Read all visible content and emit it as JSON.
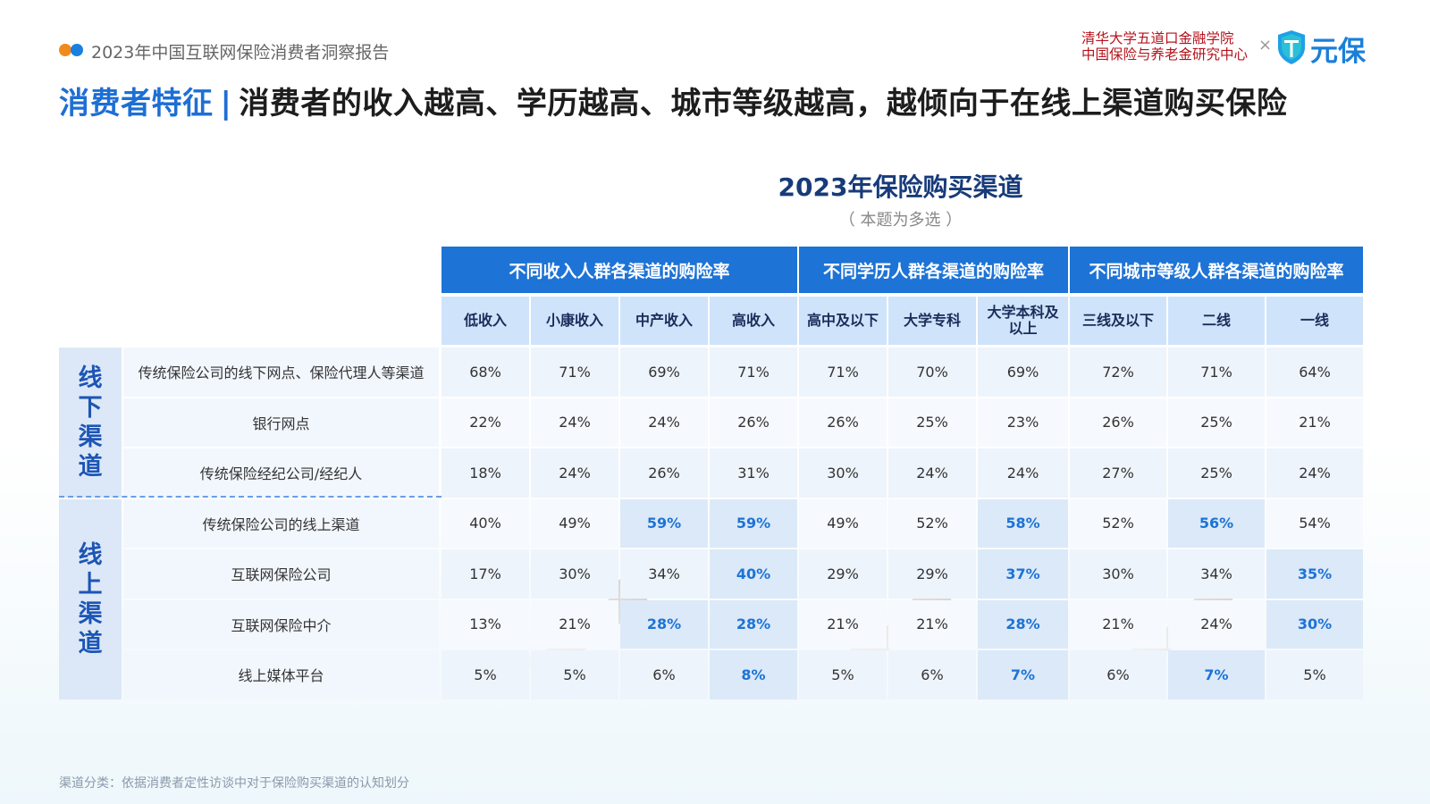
{
  "header": {
    "report_title": "2023年中国互联网保险消费者洞察报告",
    "institution_line1": "清华大学五道口金融学院",
    "institution_line2": "中国保险与养老金研究中心",
    "times": "×",
    "brand": "元保"
  },
  "headline": {
    "tag": "消费者特征",
    "separator": "|",
    "text": "消费者的收入越高、学历越高、城市等级越高，越倾向于在线上渠道购买保险"
  },
  "table": {
    "title": "2023年保险购买渠道",
    "subtitle": "（ 本题为多选 ）",
    "groups": [
      "不同收入人群各渠道的购险率",
      "不同学历人群各渠道的购险率",
      "不同城市等级人群各渠道的购险率"
    ],
    "columns": [
      "低收入",
      "小康收入",
      "中产收入",
      "高收入",
      "高中及以下",
      "大学专科",
      "大学本科及以上",
      "三线及以下",
      "二线",
      "一线"
    ],
    "sections": [
      "线下渠道",
      "线上渠道"
    ],
    "rows": [
      {
        "label": "传统保险公司的线下网点、保险代理人等渠道",
        "values": [
          "68%",
          "71%",
          "69%",
          "71%",
          "71%",
          "70%",
          "69%",
          "72%",
          "71%",
          "64%"
        ],
        "highlight": [
          false,
          false,
          false,
          false,
          false,
          false,
          false,
          false,
          false,
          false
        ]
      },
      {
        "label": "银行网点",
        "values": [
          "22%",
          "24%",
          "24%",
          "26%",
          "26%",
          "25%",
          "23%",
          "26%",
          "25%",
          "21%"
        ],
        "highlight": [
          false,
          false,
          false,
          false,
          false,
          false,
          false,
          false,
          false,
          false
        ]
      },
      {
        "label": "传统保险经纪公司/经纪人",
        "values": [
          "18%",
          "24%",
          "26%",
          "31%",
          "30%",
          "24%",
          "24%",
          "27%",
          "25%",
          "24%"
        ],
        "highlight": [
          false,
          false,
          false,
          false,
          false,
          false,
          false,
          false,
          false,
          false
        ]
      },
      {
        "label": "传统保险公司的线上渠道",
        "values": [
          "40%",
          "49%",
          "59%",
          "59%",
          "49%",
          "52%",
          "58%",
          "52%",
          "56%",
          "54%"
        ],
        "highlight": [
          false,
          false,
          true,
          true,
          false,
          false,
          true,
          false,
          true,
          false
        ]
      },
      {
        "label": "互联网保险公司",
        "values": [
          "17%",
          "30%",
          "34%",
          "40%",
          "29%",
          "29%",
          "37%",
          "30%",
          "34%",
          "35%"
        ],
        "highlight": [
          false,
          false,
          false,
          true,
          false,
          false,
          true,
          false,
          false,
          true
        ]
      },
      {
        "label": "互联网保险中介",
        "values": [
          "13%",
          "21%",
          "28%",
          "28%",
          "21%",
          "21%",
          "28%",
          "21%",
          "24%",
          "30%"
        ],
        "highlight": [
          false,
          false,
          true,
          true,
          false,
          false,
          true,
          false,
          false,
          true
        ]
      },
      {
        "label": "线上媒体平台",
        "values": [
          "5%",
          "5%",
          "6%",
          "8%",
          "5%",
          "6%",
          "7%",
          "6%",
          "7%",
          "5%"
        ],
        "highlight": [
          false,
          false,
          false,
          true,
          false,
          false,
          true,
          false,
          true,
          false
        ]
      }
    ]
  },
  "footnote": "渠道分类：依据消费者定性访谈中对于保险购买渠道的认知划分",
  "colors": {
    "accent": "#1d73d6",
    "brand_red": "#b5121b",
    "title_navy": "#173b7a"
  }
}
